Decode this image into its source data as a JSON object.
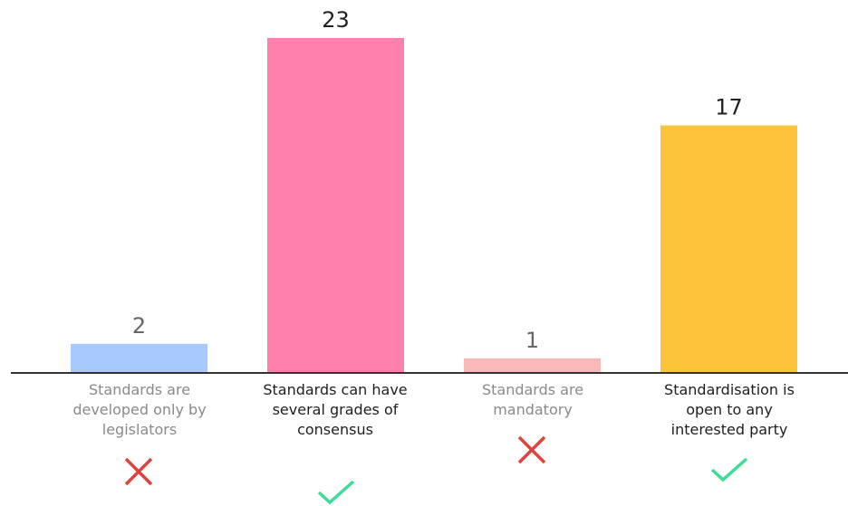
{
  "chart_data": {
    "type": "bar",
    "categories": [
      "Standards are developed only by legislators",
      "Standards can have several grades of consensus",
      "Standards are mandatory",
      "Standardisation is open to any interested party"
    ],
    "values": [
      2,
      23,
      1,
      17
    ],
    "colors": [
      "#a9c8fb",
      "#ff7fac",
      "#fbb8b8",
      "#fdc43b"
    ]
  }
}
